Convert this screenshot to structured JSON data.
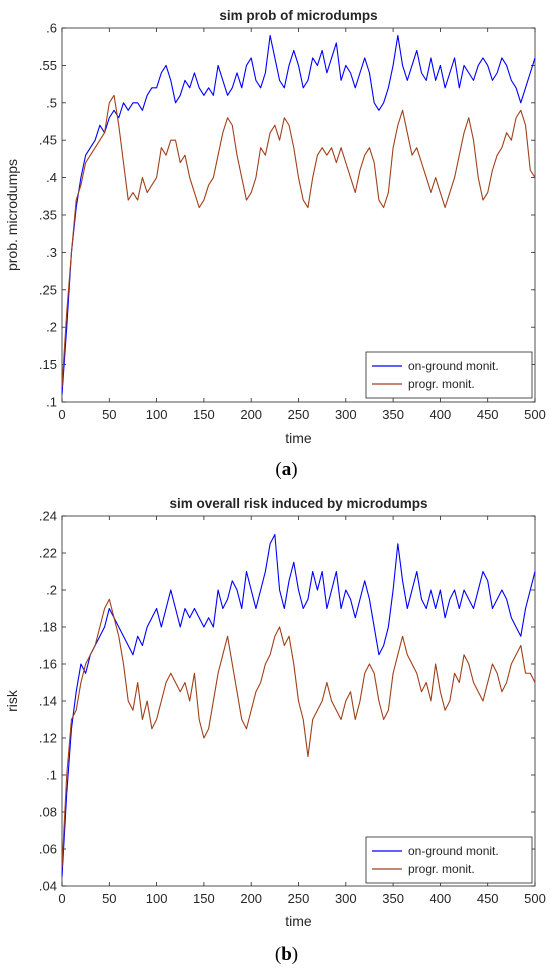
{
  "chart_data": [
    {
      "type": "line",
      "panel_label": "a",
      "title": "sim prob of microdumps",
      "xlabel": "time",
      "ylabel": "prob. microdumps",
      "xlim": [
        0,
        500
      ],
      "ylim": [
        0.1,
        0.6
      ],
      "xticks": [
        0,
        50,
        100,
        150,
        200,
        250,
        300,
        350,
        400,
        450,
        500
      ],
      "yticks": [
        0.1,
        0.15,
        0.2,
        0.25,
        0.3,
        0.35,
        0.4,
        0.45,
        0.5,
        0.55,
        0.6
      ],
      "grid": false,
      "legend_position": "bottom-right",
      "colors": {
        "on_ground": "#0000ff",
        "progr": "#a0401a"
      },
      "series": [
        {
          "name": "on-ground monit.",
          "color": "#0000ff",
          "x": [
            0,
            5,
            10,
            15,
            20,
            25,
            30,
            35,
            40,
            45,
            50,
            55,
            60,
            65,
            70,
            75,
            80,
            85,
            90,
            95,
            100,
            105,
            110,
            115,
            120,
            125,
            130,
            135,
            140,
            145,
            150,
            155,
            160,
            165,
            170,
            175,
            180,
            185,
            190,
            195,
            200,
            205,
            210,
            215,
            220,
            225,
            230,
            235,
            240,
            245,
            250,
            255,
            260,
            265,
            270,
            275,
            280,
            285,
            290,
            295,
            300,
            305,
            310,
            315,
            320,
            325,
            330,
            335,
            340,
            345,
            350,
            355,
            360,
            365,
            370,
            375,
            380,
            385,
            390,
            395,
            400,
            405,
            410,
            415,
            420,
            425,
            430,
            435,
            440,
            445,
            450,
            455,
            460,
            465,
            470,
            475,
            480,
            485,
            490,
            495,
            500
          ],
          "y": [
            0.11,
            0.2,
            0.3,
            0.36,
            0.4,
            0.43,
            0.44,
            0.45,
            0.47,
            0.46,
            0.48,
            0.49,
            0.48,
            0.5,
            0.49,
            0.5,
            0.5,
            0.49,
            0.51,
            0.52,
            0.52,
            0.54,
            0.55,
            0.53,
            0.5,
            0.51,
            0.53,
            0.52,
            0.54,
            0.52,
            0.51,
            0.52,
            0.51,
            0.55,
            0.53,
            0.51,
            0.52,
            0.54,
            0.52,
            0.55,
            0.56,
            0.53,
            0.52,
            0.54,
            0.59,
            0.56,
            0.53,
            0.52,
            0.55,
            0.57,
            0.55,
            0.52,
            0.53,
            0.56,
            0.55,
            0.57,
            0.54,
            0.56,
            0.58,
            0.53,
            0.55,
            0.54,
            0.52,
            0.54,
            0.56,
            0.54,
            0.5,
            0.49,
            0.5,
            0.52,
            0.55,
            0.59,
            0.55,
            0.53,
            0.55,
            0.57,
            0.54,
            0.53,
            0.56,
            0.53,
            0.55,
            0.52,
            0.54,
            0.56,
            0.52,
            0.55,
            0.54,
            0.53,
            0.55,
            0.56,
            0.55,
            0.53,
            0.54,
            0.56,
            0.55,
            0.53,
            0.52,
            0.5,
            0.52,
            0.54,
            0.56
          ]
        },
        {
          "name": "progr. monit.",
          "color": "#a0401a",
          "x": [
            0,
            5,
            10,
            15,
            20,
            25,
            30,
            35,
            40,
            45,
            50,
            55,
            60,
            65,
            70,
            75,
            80,
            85,
            90,
            95,
            100,
            105,
            110,
            115,
            120,
            125,
            130,
            135,
            140,
            145,
            150,
            155,
            160,
            165,
            170,
            175,
            180,
            185,
            190,
            195,
            200,
            205,
            210,
            215,
            220,
            225,
            230,
            235,
            240,
            245,
            250,
            255,
            260,
            265,
            270,
            275,
            280,
            285,
            290,
            295,
            300,
            305,
            310,
            315,
            320,
            325,
            330,
            335,
            340,
            345,
            350,
            355,
            360,
            365,
            370,
            375,
            380,
            385,
            390,
            395,
            400,
            405,
            410,
            415,
            420,
            425,
            430,
            435,
            440,
            445,
            450,
            455,
            460,
            465,
            470,
            475,
            480,
            485,
            490,
            495,
            500
          ],
          "y": [
            0.12,
            0.22,
            0.3,
            0.37,
            0.39,
            0.42,
            0.43,
            0.44,
            0.45,
            0.46,
            0.5,
            0.51,
            0.47,
            0.42,
            0.37,
            0.38,
            0.37,
            0.4,
            0.38,
            0.39,
            0.4,
            0.44,
            0.43,
            0.45,
            0.45,
            0.42,
            0.43,
            0.4,
            0.38,
            0.36,
            0.37,
            0.39,
            0.4,
            0.43,
            0.46,
            0.48,
            0.47,
            0.43,
            0.4,
            0.37,
            0.38,
            0.4,
            0.44,
            0.43,
            0.46,
            0.47,
            0.45,
            0.48,
            0.47,
            0.44,
            0.4,
            0.37,
            0.36,
            0.4,
            0.43,
            0.44,
            0.43,
            0.44,
            0.42,
            0.44,
            0.42,
            0.4,
            0.38,
            0.41,
            0.43,
            0.44,
            0.42,
            0.37,
            0.36,
            0.38,
            0.44,
            0.47,
            0.49,
            0.46,
            0.43,
            0.44,
            0.42,
            0.4,
            0.38,
            0.4,
            0.38,
            0.36,
            0.38,
            0.4,
            0.43,
            0.46,
            0.48,
            0.45,
            0.4,
            0.37,
            0.38,
            0.41,
            0.43,
            0.44,
            0.46,
            0.45,
            0.48,
            0.49,
            0.47,
            0.41,
            0.4
          ]
        }
      ]
    },
    {
      "type": "line",
      "panel_label": "b",
      "title": "sim overall risk induced by microdumps",
      "xlabel": "time",
      "ylabel": "risk",
      "xlim": [
        0,
        500
      ],
      "ylim": [
        0.04,
        0.24
      ],
      "xticks": [
        0,
        50,
        100,
        150,
        200,
        250,
        300,
        350,
        400,
        450,
        500
      ],
      "yticks": [
        0.04,
        0.06,
        0.08,
        0.1,
        0.12,
        0.14,
        0.16,
        0.18,
        0.2,
        0.22,
        0.24
      ],
      "grid": false,
      "legend_position": "bottom-right",
      "colors": {
        "on_ground": "#0000ff",
        "progr": "#a0401a"
      },
      "series": [
        {
          "name": "on-ground monit.",
          "color": "#0000ff",
          "x": [
            0,
            5,
            10,
            15,
            20,
            25,
            30,
            35,
            40,
            45,
            50,
            55,
            60,
            65,
            70,
            75,
            80,
            85,
            90,
            95,
            100,
            105,
            110,
            115,
            120,
            125,
            130,
            135,
            140,
            145,
            150,
            155,
            160,
            165,
            170,
            175,
            180,
            185,
            190,
            195,
            200,
            205,
            210,
            215,
            220,
            225,
            230,
            235,
            240,
            245,
            250,
            255,
            260,
            265,
            270,
            275,
            280,
            285,
            290,
            295,
            300,
            305,
            310,
            315,
            320,
            325,
            330,
            335,
            340,
            345,
            350,
            355,
            360,
            365,
            370,
            375,
            380,
            385,
            390,
            395,
            400,
            405,
            410,
            415,
            420,
            425,
            430,
            435,
            440,
            445,
            450,
            455,
            460,
            465,
            470,
            475,
            480,
            485,
            490,
            495,
            500
          ],
          "y": [
            0.045,
            0.09,
            0.125,
            0.145,
            0.16,
            0.155,
            0.165,
            0.17,
            0.175,
            0.18,
            0.19,
            0.185,
            0.18,
            0.175,
            0.17,
            0.165,
            0.175,
            0.17,
            0.18,
            0.185,
            0.19,
            0.18,
            0.19,
            0.2,
            0.19,
            0.18,
            0.19,
            0.185,
            0.19,
            0.185,
            0.18,
            0.185,
            0.18,
            0.2,
            0.19,
            0.195,
            0.205,
            0.2,
            0.19,
            0.21,
            0.2,
            0.19,
            0.2,
            0.21,
            0.225,
            0.23,
            0.2,
            0.19,
            0.205,
            0.215,
            0.2,
            0.19,
            0.195,
            0.21,
            0.2,
            0.21,
            0.19,
            0.2,
            0.21,
            0.19,
            0.2,
            0.195,
            0.185,
            0.195,
            0.205,
            0.195,
            0.18,
            0.165,
            0.17,
            0.18,
            0.2,
            0.225,
            0.205,
            0.19,
            0.2,
            0.21,
            0.195,
            0.19,
            0.2,
            0.19,
            0.2,
            0.185,
            0.195,
            0.2,
            0.19,
            0.2,
            0.195,
            0.19,
            0.2,
            0.21,
            0.205,
            0.19,
            0.195,
            0.2,
            0.195,
            0.185,
            0.18,
            0.175,
            0.19,
            0.2,
            0.21
          ]
        },
        {
          "name": "progr. monit.",
          "color": "#a0401a",
          "x": [
            0,
            5,
            10,
            15,
            20,
            25,
            30,
            35,
            40,
            45,
            50,
            55,
            60,
            65,
            70,
            75,
            80,
            85,
            90,
            95,
            100,
            105,
            110,
            115,
            120,
            125,
            130,
            135,
            140,
            145,
            150,
            155,
            160,
            165,
            170,
            175,
            180,
            185,
            190,
            195,
            200,
            205,
            210,
            215,
            220,
            225,
            230,
            235,
            240,
            245,
            250,
            255,
            260,
            265,
            270,
            275,
            280,
            285,
            290,
            295,
            300,
            305,
            310,
            315,
            320,
            325,
            330,
            335,
            340,
            345,
            350,
            355,
            360,
            365,
            370,
            375,
            380,
            385,
            390,
            395,
            400,
            405,
            410,
            415,
            420,
            425,
            430,
            435,
            440,
            445,
            450,
            455,
            460,
            465,
            470,
            475,
            480,
            485,
            490,
            495,
            500
          ],
          "y": [
            0.05,
            0.1,
            0.13,
            0.135,
            0.15,
            0.16,
            0.165,
            0.17,
            0.18,
            0.19,
            0.195,
            0.185,
            0.175,
            0.16,
            0.14,
            0.135,
            0.15,
            0.13,
            0.14,
            0.125,
            0.13,
            0.14,
            0.15,
            0.155,
            0.15,
            0.145,
            0.15,
            0.14,
            0.155,
            0.13,
            0.12,
            0.125,
            0.14,
            0.155,
            0.165,
            0.175,
            0.16,
            0.145,
            0.13,
            0.125,
            0.135,
            0.145,
            0.15,
            0.16,
            0.165,
            0.175,
            0.18,
            0.17,
            0.175,
            0.16,
            0.14,
            0.13,
            0.11,
            0.13,
            0.135,
            0.14,
            0.15,
            0.14,
            0.135,
            0.13,
            0.14,
            0.145,
            0.13,
            0.14,
            0.155,
            0.16,
            0.155,
            0.14,
            0.13,
            0.135,
            0.155,
            0.165,
            0.175,
            0.165,
            0.16,
            0.155,
            0.145,
            0.15,
            0.14,
            0.16,
            0.145,
            0.135,
            0.14,
            0.155,
            0.15,
            0.165,
            0.16,
            0.15,
            0.145,
            0.14,
            0.15,
            0.16,
            0.155,
            0.145,
            0.15,
            0.16,
            0.165,
            0.17,
            0.155,
            0.155,
            0.15
          ]
        }
      ]
    }
  ]
}
